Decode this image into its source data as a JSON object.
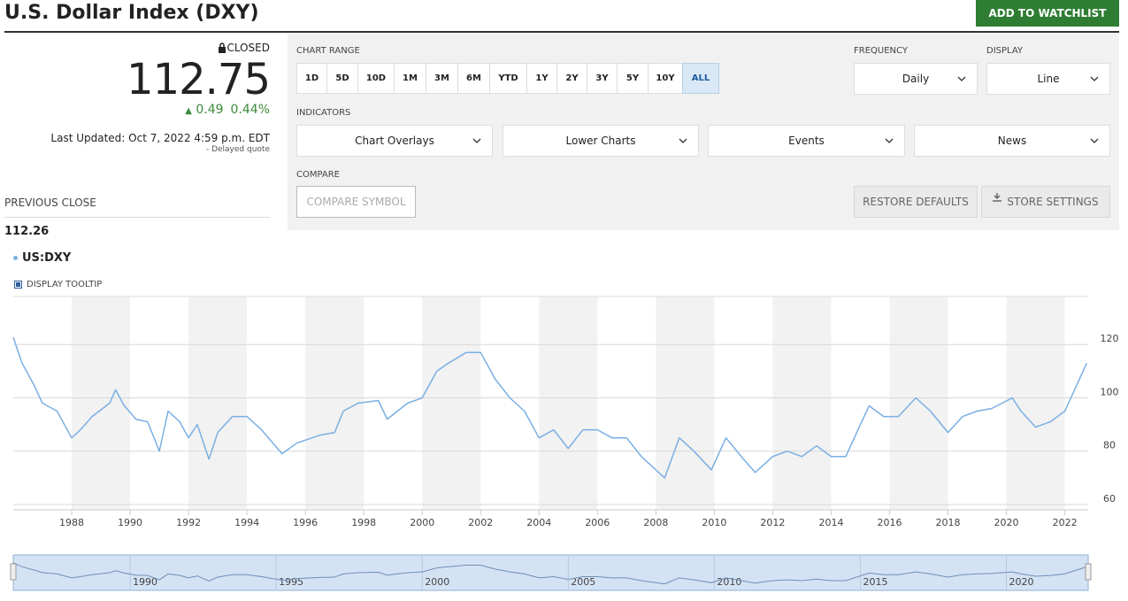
{
  "header": {
    "title": "U.S. Dollar Index (DXY)",
    "watchlist_button": "ADD TO WATCHLIST"
  },
  "quote": {
    "status": "CLOSED",
    "price": "112.75",
    "change": "0.49",
    "change_percent": "0.44%",
    "last_updated": "Last Updated: Oct 7, 2022 4:59 p.m. EDT",
    "delayed": "- Delayed quote",
    "previous_close_label": "PREVIOUS CLOSE",
    "previous_close": "112.26"
  },
  "controls": {
    "chart_range_label": "CHART RANGE",
    "range_buttons": [
      "1D",
      "5D",
      "10D",
      "1M",
      "3M",
      "6M",
      "YTD",
      "1Y",
      "2Y",
      "3Y",
      "5Y",
      "10Y",
      "ALL"
    ],
    "frequency_label": "FREQUENCY",
    "frequency": "Daily",
    "display_label": "DISPLAY",
    "display": "Line",
    "indicators_label": "INDICATORS",
    "indicators": [
      "Chart Overlays",
      "Lower Charts",
      "Events",
      "News"
    ],
    "compare_label": "COMPARE",
    "compare_placeholder": "COMPARE SYMBOL",
    "restore_defaults": "RESTORE DEFAULTS",
    "store_settings": "STORE SETTINGS",
    "tooltip_toggle": "DISPLAY TOOLTIP"
  },
  "chart_data": {
    "type": "line",
    "x": [
      1986.0,
      1986.3,
      1986.7,
      1987.0,
      1987.5,
      1988.0,
      1988.3,
      1988.7,
      1989.3,
      1989.5,
      1989.8,
      1990.2,
      1990.6,
      1991.0,
      1991.3,
      1991.7,
      1992.0,
      1992.3,
      1992.7,
      1993.0,
      1993.5,
      1994.0,
      1994.5,
      1995.2,
      1995.7,
      1996.5,
      1997.0,
      1997.3,
      1997.8,
      1998.5,
      1998.8,
      1999.5,
      2000.0,
      2000.5,
      2000.9,
      2001.5,
      2002.0,
      2002.5,
      2003.0,
      2003.5,
      2004.0,
      2004.5,
      2005.0,
      2005.5,
      2006.0,
      2006.5,
      2007.0,
      2007.5,
      2008.3,
      2008.8,
      2009.3,
      2009.9,
      2010.4,
      2011.0,
      2011.4,
      2012.0,
      2012.5,
      2013.0,
      2013.5,
      2014.0,
      2014.5,
      2015.0,
      2015.3,
      2015.8,
      2016.3,
      2016.9,
      2017.4,
      2018.0,
      2018.5,
      2019.0,
      2019.5,
      2020.2,
      2020.5,
      2021.0,
      2021.5,
      2022.0,
      2022.5,
      2022.75
    ],
    "series": [
      {
        "name": "US:DXY",
        "color": "#7aafe3",
        "values": [
          122.7,
          113,
          105,
          98,
          95,
          85,
          88,
          93,
          98,
          103,
          97,
          92,
          91,
          80,
          95,
          91,
          85,
          90,
          77,
          87,
          93,
          93,
          88,
          79,
          83,
          86,
          87,
          95,
          98,
          99,
          92,
          98,
          100,
          110,
          113,
          117,
          117,
          107,
          100,
          95,
          85,
          88,
          81,
          88,
          88,
          85,
          85,
          78,
          70,
          85,
          80,
          73,
          85,
          77,
          72,
          78,
          80,
          78,
          82,
          78,
          78,
          90,
          97,
          93,
          93,
          100,
          95,
          87,
          93,
          95,
          96,
          100,
          95,
          89,
          91,
          95,
          107,
          113
        ]
      }
    ],
    "xlim": [
      1986.0,
      2022.8
    ],
    "ylim": [
      58,
      138
    ],
    "xticks": [
      1988,
      1990,
      1992,
      1994,
      1996,
      1998,
      2000,
      2002,
      2004,
      2006,
      2008,
      2010,
      2012,
      2014,
      2016,
      2018,
      2020,
      2022
    ],
    "yticks": [
      60,
      80,
      100,
      120
    ],
    "grid": true,
    "navigator_xticks": [
      1990,
      1995,
      2000,
      2005,
      2010,
      2015,
      2020
    ]
  }
}
